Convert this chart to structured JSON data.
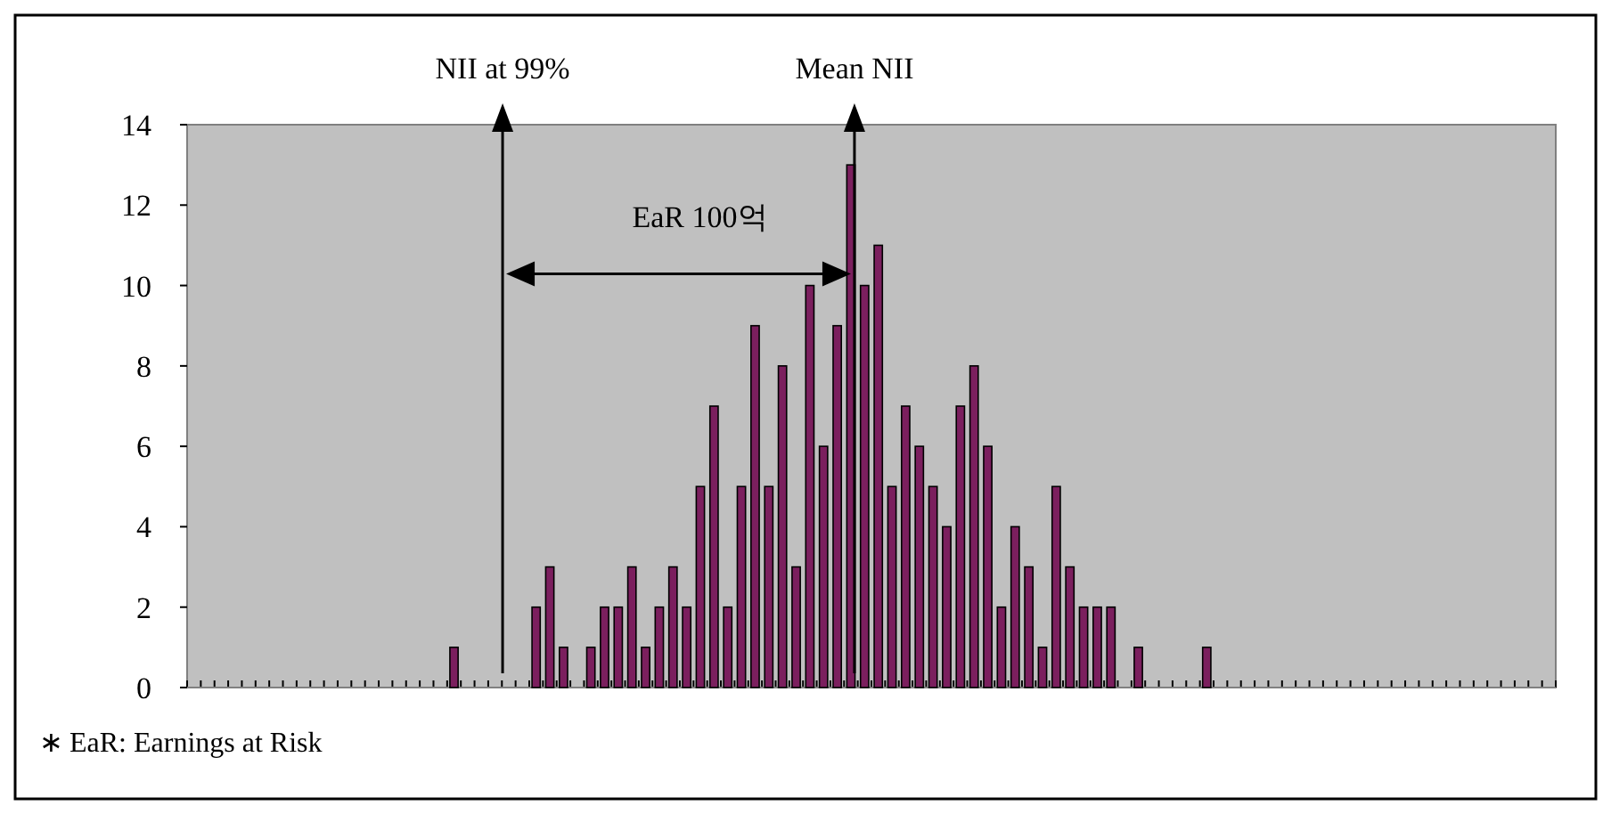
{
  "chart_data": {
    "type": "bar",
    "categories": [
      null,
      null,
      null,
      null,
      null,
      null,
      null,
      null,
      null,
      null,
      null,
      null,
      null,
      null,
      null,
      null,
      null,
      null,
      null,
      null,
      null,
      null,
      null,
      null,
      null,
      null,
      null,
      null,
      null,
      null,
      null,
      null,
      null,
      null,
      null,
      null,
      null,
      null,
      null,
      null,
      null,
      null,
      null,
      null,
      null,
      null,
      null,
      null,
      null,
      null,
      null,
      null,
      null,
      null,
      null,
      null,
      null,
      null,
      null,
      null,
      null,
      null,
      null,
      null,
      null,
      null,
      null,
      null,
      null,
      null,
      null,
      null,
      null,
      null,
      null,
      null,
      null,
      null,
      null,
      null,
      null,
      null,
      null,
      null,
      null,
      null,
      null,
      null,
      null,
      null,
      null,
      null,
      null,
      null,
      null,
      null,
      null,
      null,
      null,
      null
    ],
    "values": [
      0,
      0,
      0,
      0,
      0,
      0,
      0,
      0,
      0,
      0,
      0,
      0,
      0,
      0,
      0,
      0,
      0,
      0,
      0,
      1,
      0,
      0,
      0,
      0,
      0,
      2,
      3,
      1,
      0,
      1,
      2,
      2,
      3,
      1,
      2,
      3,
      2,
      5,
      7,
      2,
      5,
      9,
      5,
      8,
      3,
      10,
      6,
      9,
      13,
      10,
      11,
      5,
      7,
      6,
      5,
      4,
      7,
      8,
      6,
      2,
      4,
      3,
      1,
      5,
      3,
      2,
      2,
      2,
      0,
      1,
      0,
      0,
      0,
      0,
      1,
      0,
      0,
      0,
      0,
      0,
      0,
      0,
      0,
      0,
      0,
      0,
      0,
      0,
      0,
      0,
      0,
      0,
      0,
      0,
      0,
      0,
      0,
      0,
      0,
      0
    ],
    "color": "#7b1f5e",
    "ylim": [
      0,
      14
    ],
    "yticks": [
      0,
      2,
      4,
      6,
      8,
      10,
      12,
      14
    ],
    "tick_labels": "y",
    "annotations": [
      "NII at 99%",
      "Mean NII",
      "EaR 100억",
      "∗ EaR: Earnings at Risk"
    ]
  }
}
